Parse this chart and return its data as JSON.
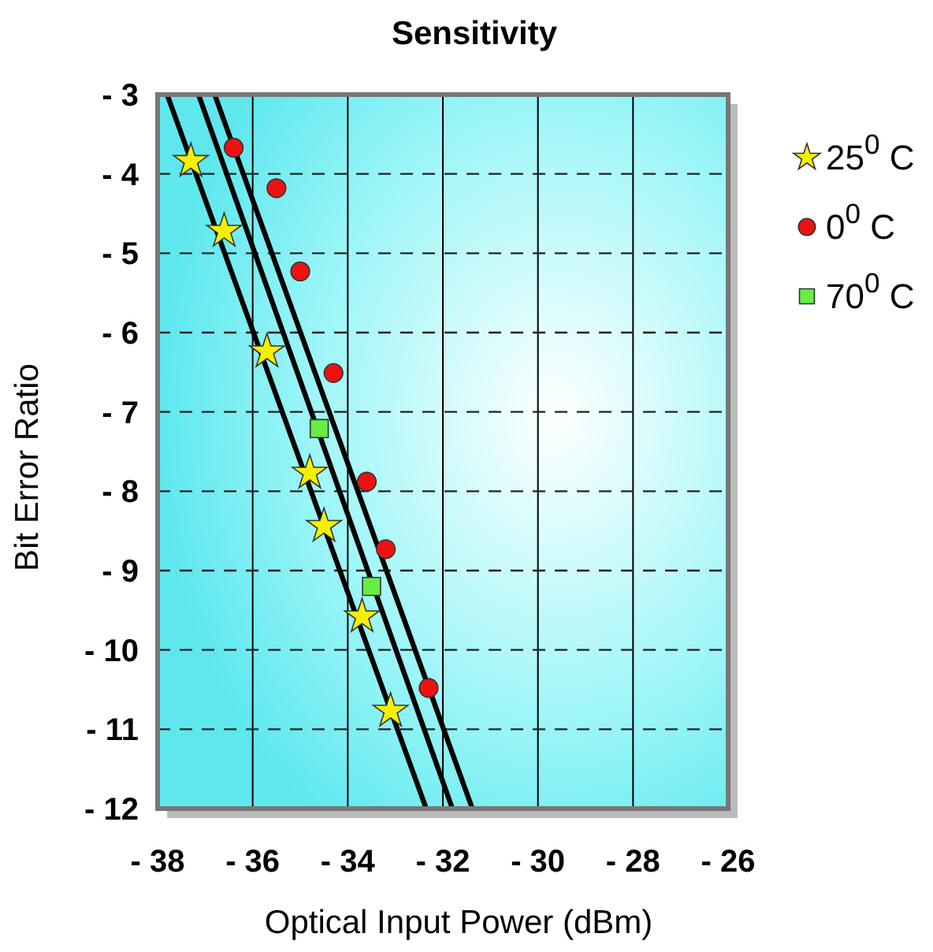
{
  "chart_data": {
    "type": "scatter",
    "title": "Sensitivity",
    "xlabel": "Optical Input Power (dBm)",
    "ylabel": "Bit Error Ratio",
    "xlim": [
      -38,
      -26
    ],
    "ylim": [
      -12,
      -3
    ],
    "xticks": [
      {
        "value": -38,
        "label": "- 38"
      },
      {
        "value": -36,
        "label": "- 36"
      },
      {
        "value": -34,
        "label": "- 34"
      },
      {
        "value": -32,
        "label": "- 32"
      },
      {
        "value": -30,
        "label": "- 30"
      },
      {
        "value": -28,
        "label": "- 28"
      },
      {
        "value": -26,
        "label": "- 26"
      }
    ],
    "yticks": [
      {
        "value": -3,
        "label": "- 3"
      },
      {
        "value": -4,
        "label": "- 4"
      },
      {
        "value": -5,
        "label": "- 5"
      },
      {
        "value": -6,
        "label": "- 6"
      },
      {
        "value": -7,
        "label": "- 7"
      },
      {
        "value": -8,
        "label": "- 8"
      },
      {
        "value": -9,
        "label": "- 9"
      },
      {
        "value": -10,
        "label": "- 10"
      },
      {
        "value": -11,
        "label": "- 11"
      },
      {
        "value": -12,
        "label": "- 12"
      }
    ],
    "grid": true,
    "legend": "right",
    "series": [
      {
        "type": "line",
        "color": "#000000",
        "marker": "none",
        "x": [
          -37.8,
          -32.35
        ],
        "values": [
          -3,
          -12
        ]
      },
      {
        "type": "line",
        "color": "#000000",
        "marker": "none",
        "x": [
          -37.14,
          -31.8
        ],
        "values": [
          -3,
          -12
        ]
      },
      {
        "type": "line",
        "color": "#000000",
        "marker": "none",
        "x": [
          -36.8,
          -31.38
        ],
        "values": [
          -3,
          -12
        ]
      },
      {
        "name": "25$^{0}$ C",
        "color": "#f5f000",
        "marker": "star",
        "x": [
          -37.3,
          -36.6,
          -35.7,
          -34.8,
          -34.5,
          -33.7,
          -33.1
        ],
        "values": [
          -3.84,
          -4.72,
          -6.24,
          -7.77,
          -8.44,
          -9.58,
          -10.77
        ]
      },
      {
        "name": "0$^{0}$ C",
        "color": "#ee1111",
        "marker": "circle",
        "x": [
          -36.4,
          -35.5,
          -35.0,
          -34.3,
          -33.6,
          -33.2,
          -32.3
        ],
        "values": [
          -3.67,
          -4.18,
          -5.23,
          -6.51,
          -7.88,
          -8.73,
          -10.48
        ]
      },
      {
        "name": "70$^{0}$ C",
        "color": "#66ee44",
        "marker": "square",
        "x": [
          -34.6,
          -33.5
        ],
        "values": [
          -7.21,
          -9.2
        ]
      }
    ]
  }
}
